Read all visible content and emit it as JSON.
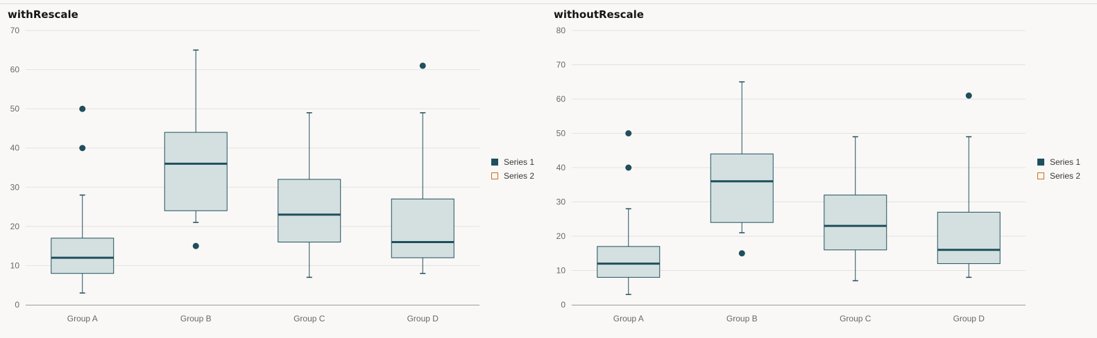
{
  "colors": {
    "series1": "#1f4f5c",
    "series1_fill": "#d4e0e0",
    "series2": "#c9700f",
    "grid": "#e4e2df",
    "axis": "#9e9b97",
    "tick_text": "#6a6764",
    "background": "#f9f8f7"
  },
  "chart_data": [
    {
      "type": "boxplot",
      "title": "withRescale",
      "categories": [
        "Group A",
        "Group B",
        "Group C",
        "Group D"
      ],
      "y_ticks": [
        0,
        10,
        20,
        30,
        40,
        50,
        60,
        70
      ],
      "ylim": [
        0,
        70
      ],
      "grid": true,
      "legend_position": "right",
      "legend": [
        "Series 1",
        "Series 2"
      ],
      "series": [
        {
          "name": "Series 1",
          "boxes": [
            {
              "min": 3,
              "q1": 8,
              "median": 12,
              "q3": 17,
              "max": 28,
              "outliers": [
                40,
                50
              ]
            },
            {
              "min": 21,
              "q1": 24,
              "median": 36,
              "q3": 44,
              "max": 65,
              "outliers": [
                15
              ]
            },
            {
              "min": 7,
              "q1": 16,
              "median": 23,
              "q3": 32,
              "max": 49,
              "outliers": []
            },
            {
              "min": 8,
              "q1": 12,
              "median": 16,
              "q3": 27,
              "max": 49,
              "outliers": [
                61
              ]
            }
          ]
        },
        {
          "name": "Series 2",
          "boxes": []
        }
      ]
    },
    {
      "type": "boxplot",
      "title": "withoutRescale",
      "categories": [
        "Group A",
        "Group B",
        "Group C",
        "Group D"
      ],
      "y_ticks": [
        0,
        10,
        20,
        30,
        40,
        50,
        60,
        70,
        80
      ],
      "ylim": [
        0,
        80
      ],
      "grid": true,
      "legend_position": "right",
      "legend": [
        "Series 1",
        "Series 2"
      ],
      "series": [
        {
          "name": "Series 1",
          "boxes": [
            {
              "min": 3,
              "q1": 8,
              "median": 12,
              "q3": 17,
              "max": 28,
              "outliers": [
                40,
                50
              ]
            },
            {
              "min": 21,
              "q1": 24,
              "median": 36,
              "q3": 44,
              "max": 65,
              "outliers": [
                15
              ]
            },
            {
              "min": 7,
              "q1": 16,
              "median": 23,
              "q3": 32,
              "max": 49,
              "outliers": []
            },
            {
              "min": 8,
              "q1": 12,
              "median": 16,
              "q3": 27,
              "max": 49,
              "outliers": [
                61
              ]
            }
          ]
        },
        {
          "name": "Series 2",
          "boxes": []
        }
      ]
    }
  ]
}
